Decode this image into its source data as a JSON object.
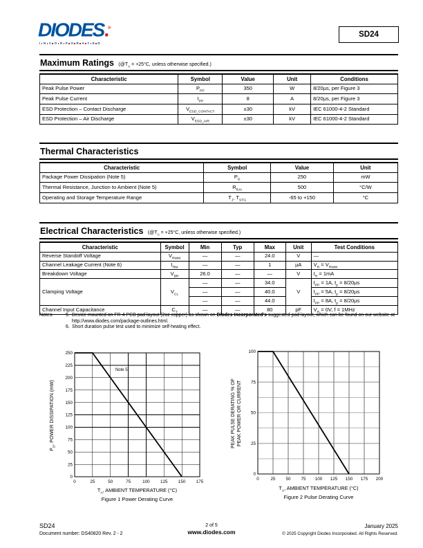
{
  "colors": {
    "logo_blue": "#00539f",
    "logo_red": "#d6181f",
    "grid_gray": "#b5b5b5",
    "grid_dark": "#6e6e6e"
  },
  "header": {
    "logo_word": "DIODES",
    "logo_dot": ".",
    "logo_reg": "®",
    "logo_sub": "INCORPORATED",
    "part_number": "SD24"
  },
  "sections": {
    "maximum_ratings": {
      "title": "Maximum Ratings",
      "subtitle": [
        {
          "t": "(@T"
        },
        {
          "sub": "A"
        },
        {
          "t": " = +25°C, unless otherwise specified.)"
        }
      ],
      "table": {
        "columns": [
          {
            "label": "Characteristic",
            "width": 38.7,
            "align": "left"
          },
          {
            "label": "Symbol",
            "width": 12.3
          },
          {
            "label": "Value",
            "width": 14.3
          },
          {
            "label": "Unit",
            "width": 10.4
          },
          {
            "label": "Conditions",
            "width": 24.3,
            "align": "left"
          }
        ],
        "rows": [
          [
            {
              "c": "Peak Pulse Power"
            },
            {
              "c": [
                {
                  "t": "P"
                },
                {
                  "sub": "PP"
                }
              ]
            },
            {
              "c": "350"
            },
            {
              "c": "W"
            },
            {
              "c": "8/20µs, per Figure 3"
            }
          ],
          [
            {
              "c": "Peak Pulse Current"
            },
            {
              "c": [
                {
                  "t": "I"
                },
                {
                  "sub": "PP"
                }
              ]
            },
            {
              "c": "8"
            },
            {
              "c": "A"
            },
            {
              "c": "8/20µs, per Figure 3"
            }
          ],
          [
            {
              "c": "ESD Protection – Contact Discharge"
            },
            {
              "c": [
                {
                  "t": "V"
                },
                {
                  "sub": "ESD_CONTACT"
                }
              ]
            },
            {
              "c": "±30"
            },
            {
              "c": "kV"
            },
            {
              "c": "IEC 61000-4-2 Standard"
            }
          ],
          [
            {
              "c": "ESD Protection – Air Discharge"
            },
            {
              "c": [
                {
                  "t": "V"
                },
                {
                  "sub": "ESD_AIR"
                }
              ]
            },
            {
              "c": "±30"
            },
            {
              "c": "kV"
            },
            {
              "c": "IEC 61000-4-2 Standard"
            }
          ]
        ]
      }
    },
    "thermal": {
      "title": "Thermal Characteristics",
      "subtitle": [],
      "table": {
        "columns": [
          {
            "label": "Characteristic",
            "width": 45.8,
            "align": "left"
          },
          {
            "label": "Symbol",
            "width": 18.7
          },
          {
            "label": "Value",
            "width": 17.5
          },
          {
            "label": "Unit",
            "width": 18.0
          }
        ],
        "rows": [
          [
            {
              "c": "Package Power Dissipation (Note 5)"
            },
            {
              "c": [
                {
                  "t": "P"
                },
                {
                  "sub": "D"
                }
              ]
            },
            {
              "c": "250"
            },
            {
              "c": "mW"
            }
          ],
          [
            {
              "c": "Thermal Resistance, Junction to Ambient (Note 5)"
            },
            {
              "c": [
                {
                  "t": "R"
                },
                {
                  "sub": "θJA"
                }
              ]
            },
            {
              "c": "500"
            },
            {
              "c": "°C/W"
            }
          ],
          [
            {
              "c": "Operating and Storage Temperature Range"
            },
            {
              "c": [
                {
                  "t": "T"
                },
                {
                  "sub": "J"
                },
                {
                  "t": ", T"
                },
                {
                  "sub": "STG"
                }
              ]
            },
            {
              "c": "-65 to +150"
            },
            {
              "c": "°C"
            }
          ]
        ]
      }
    },
    "electrical": {
      "title": "Electrical Characteristics",
      "subtitle": [
        {
          "t": "(@T"
        },
        {
          "sub": "A"
        },
        {
          "t": " = +25°C, unless otherwise specified.)"
        }
      ],
      "table": {
        "compact": true,
        "columns": [
          {
            "label": "Characteristic",
            "width": 33.7,
            "align": "left"
          },
          {
            "label": "Symbol",
            "width": 7.9
          },
          {
            "label": "Min",
            "width": 9.1
          },
          {
            "label": "Typ",
            "width": 9.1
          },
          {
            "label": "Max",
            "width": 8.9
          },
          {
            "label": "Unit",
            "width": 7.1
          },
          {
            "label": "Test Conditions",
            "width": 24.2,
            "align": "left"
          }
        ],
        "rows": [
          [
            {
              "c": "Reverse Standoff Voltage"
            },
            {
              "c": [
                {
                  "t": "V"
                },
                {
                  "sub": "RWM"
                }
              ]
            },
            {
              "c": "—"
            },
            {
              "c": "—"
            },
            {
              "c": "24.0"
            },
            {
              "c": "V"
            },
            {
              "c": "—"
            }
          ],
          [
            {
              "c": "Channel Leakage Current (Note 6)"
            },
            {
              "c": [
                {
                  "t": "I"
                },
                {
                  "sub": "RM"
                }
              ]
            },
            {
              "c": "—"
            },
            {
              "c": "—"
            },
            {
              "c": "1"
            },
            {
              "c": "µA"
            },
            {
              "c": [
                {
                  "t": "V"
                },
                {
                  "sub": "R"
                },
                {
                  "t": " = V"
                },
                {
                  "sub": "RWM"
                }
              ]
            }
          ],
          [
            {
              "c": "Breakdown Voltage"
            },
            {
              "c": [
                {
                  "t": "V"
                },
                {
                  "sub": "BR"
                }
              ]
            },
            {
              "c": "26.0"
            },
            {
              "c": "—"
            },
            {
              "c": "—"
            },
            {
              "c": "V"
            },
            {
              "c": [
                {
                  "t": "I"
                },
                {
                  "sub": "R"
                },
                {
                  "t": " = 1mA"
                }
              ]
            }
          ],
          [
            {
              "c": "Clamping Voltage",
              "rs": 3
            },
            {
              "c": [
                {
                  "t": "V"
                },
                {
                  "sub": "CL"
                }
              ],
              "rs": 3
            },
            {
              "c": "—"
            },
            {
              "c": "—"
            },
            {
              "c": "34.0"
            },
            {
              "c": "V",
              "rs": 3
            },
            {
              "c": [
                {
                  "t": "I"
                },
                {
                  "sub": "PP"
                },
                {
                  "t": " = 1A, t"
                },
                {
                  "sub": "p"
                },
                {
                  "t": " = 8/20µs"
                }
              ]
            }
          ],
          [
            {
              "c": "—"
            },
            {
              "c": "—"
            },
            {
              "c": "40.0"
            },
            {
              "c": [
                {
                  "t": "I"
                },
                {
                  "sub": "PP"
                },
                {
                  "t": " = 5A, t"
                },
                {
                  "sub": "p"
                },
                {
                  "t": " = 8/20µs"
                }
              ]
            }
          ],
          [
            {
              "c": "—"
            },
            {
              "c": "—"
            },
            {
              "c": "44.0"
            },
            {
              "c": [
                {
                  "t": "I"
                },
                {
                  "sub": "PP"
                },
                {
                  "t": " = 8A, t"
                },
                {
                  "sub": "p"
                },
                {
                  "t": " = 8/20µs"
                }
              ]
            }
          ],
          [
            {
              "c": "Channel Input Capacitance"
            },
            {
              "c": [
                {
                  "t": "C"
                },
                {
                  "sub": "T"
                }
              ]
            },
            {
              "c": "—"
            },
            {
              "c": "—"
            },
            {
              "c": "80"
            },
            {
              "c": "pF"
            },
            {
              "c": [
                {
                  "t": "V"
                },
                {
                  "sub": "R"
                },
                {
                  "t": " = 0V, f = 1MHz"
                }
              ]
            }
          ]
        ]
      }
    }
  },
  "notes": {
    "label": "Notes:",
    "items": [
      {
        "num": "5.",
        "segs": [
          {
            "t": "Device mounted on FR-4 PCB pad layout (2oz copper) as shown on "
          },
          {
            "b": "Diodes Incorporated's"
          },
          {
            "t": " suggested pad layout, which can be found on our website at"
          },
          {
            "br": true
          },
          {
            "u": "http://www.diodes.com/package-outlines.html"
          },
          {
            "t": "."
          }
        ]
      },
      {
        "num": "6.",
        "segs": [
          {
            "t": "Short duration pulse test used to minimize self-heating effect."
          }
        ]
      }
    ]
  },
  "figures": [
    {
      "caption": "Figure 1 Power Derating Curve",
      "xlabel_segs": [
        {
          "t": "T"
        },
        {
          "sub": "A"
        },
        {
          "t": ", AMBIENT TEMPERATURE (°C)"
        }
      ],
      "ylabel_segs": [
        {
          "t": "P"
        },
        {
          "sub": "D"
        },
        {
          "t": ", POWER DISSIPATION (mW)"
        }
      ],
      "chart_data": {
        "type": "line",
        "title": "Figure 1 Power Derating Curve",
        "xlabel": "TA, AMBIENT TEMPERATURE (°C)",
        "ylabel": "PD, POWER DISSIPATION (mW)",
        "xlim": [
          0,
          175
        ],
        "ylim": [
          0,
          250
        ],
        "x_tick_step": 25,
        "y_tick_step": 25,
        "x_grid_step": 25,
        "y_grid_step": 25,
        "grid": "on",
        "series": [
          {
            "name": "power-derating",
            "points": [
              [
                0,
                250
              ],
              [
                25,
                250
              ],
              [
                150,
                0
              ]
            ]
          }
        ],
        "annotation": {
          "text": "Note 5",
          "x": 57,
          "y": 214
        }
      }
    },
    {
      "caption": "Figure 2 Pulse Derating Curve",
      "xlabel_segs": [
        {
          "t": "T"
        },
        {
          "sub": "A"
        },
        {
          "t": ", AMBIENT TEMPERATURE (°C)"
        }
      ],
      "ylabel_segs": [
        {
          "t": "PEAK PULSE DERATING % OF"
        },
        {
          "br": true
        },
        {
          "t": "PEAK POWER OR CURRENT"
        }
      ],
      "chart_data": {
        "type": "line",
        "title": "Figure 2 Pulse Derating Curve",
        "xlabel": "TA, AMBIENT TEMPERATURE (°C)",
        "ylabel": "PEAK PULSE DERATING % OF PEAK POWER OR CURRENT",
        "xlim": [
          0,
          200
        ],
        "ylim": [
          0,
          100
        ],
        "x_tick_step": 25,
        "y_tick_step": 25,
        "x_grid_step": 25,
        "y_grid_step": 12.5,
        "grid": "on",
        "series": [
          {
            "name": "pulse-derating",
            "points": [
              [
                0,
                100
              ],
              [
                25,
                100
              ],
              [
                150,
                0
              ]
            ]
          }
        ],
        "annotation": null
      }
    }
  ],
  "footer": {
    "part": "SD24",
    "doc_number": "Document number: DS40820  Rev. 2 - 2",
    "page_of": "2 of 5",
    "website": "www.diodes.com",
    "date": "January 2025",
    "copyright": "© 2025 Copyright Diodes Incorporated. All Rights Reserved."
  }
}
